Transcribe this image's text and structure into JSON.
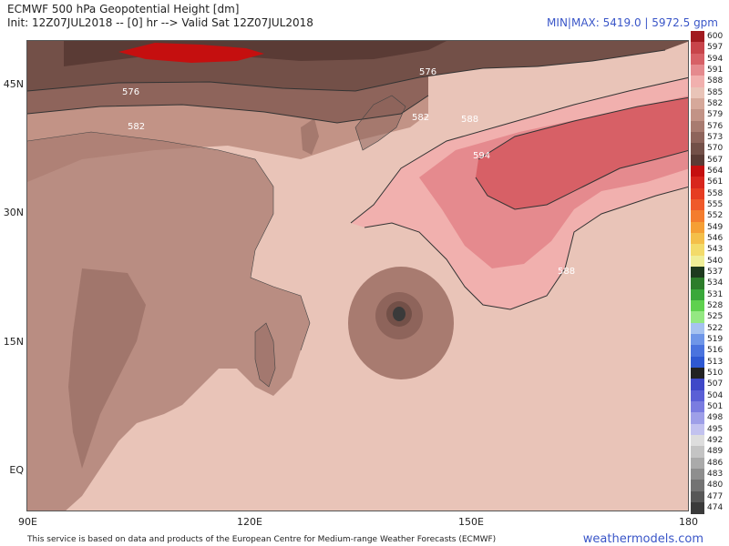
{
  "header": {
    "title": "ECMWF 500 hPa Geopotential Height [dm]",
    "init": "Init: 12Z07JUL2018 -- [0] hr --> Valid Sat 12Z07JUL2018",
    "minmax": "MIN|MAX: 5419.0 | 5972.5 gpm"
  },
  "axes": {
    "lat_labels": [
      "45N",
      "30N",
      "15N",
      "EQ"
    ],
    "lon_labels": [
      "90E",
      "120E",
      "150E",
      "180"
    ]
  },
  "contour_labels": [
    "576",
    "582",
    "576",
    "582",
    "588",
    "594",
    "588"
  ],
  "colorbar": {
    "labels": [
      "600",
      "597",
      "594",
      "591",
      "588",
      "585",
      "582",
      "579",
      "576",
      "573",
      "570",
      "567",
      "564",
      "561",
      "558",
      "555",
      "552",
      "549",
      "546",
      "543",
      "540",
      "537",
      "534",
      "531",
      "528",
      "525",
      "522",
      "519",
      "516",
      "513",
      "510",
      "507",
      "504",
      "501",
      "498",
      "495",
      "492",
      "489",
      "486",
      "483",
      "480",
      "477",
      "474"
    ],
    "colors": [
      "#a11a1f",
      "#c8444a",
      "#d76066",
      "#e58a8e",
      "#f1b0ae",
      "#e9c4b8",
      "#d6a89a",
      "#c29386",
      "#a87b70",
      "#8e645b",
      "#735048",
      "#5a3b35",
      "#c50f0f",
      "#d8261d",
      "#e63d22",
      "#ef5a2a",
      "#f47d2e",
      "#f59f35",
      "#f4bf4a",
      "#f3db6a",
      "#efee97",
      "#1e3a1e",
      "#2d7d2a",
      "#39a83a",
      "#5fd14e",
      "#94e882",
      "#a6c2f0",
      "#6f96e8",
      "#4a73de",
      "#2e58d2",
      "#222222",
      "#3f48c8",
      "#5a5fd6",
      "#7a7ce0",
      "#9e9fe8",
      "#c2c2ef",
      "#dddddd",
      "#c4c4c4",
      "#aaaaaa",
      "#8e8e8e",
      "#737373",
      "#575757",
      "#3a3a3a"
    ]
  },
  "footer": {
    "notice": "This service is based on data and products of the European Centre for Medium-range Weather Forecasts (ECMWF)",
    "brand": "weathermodels.com"
  }
}
